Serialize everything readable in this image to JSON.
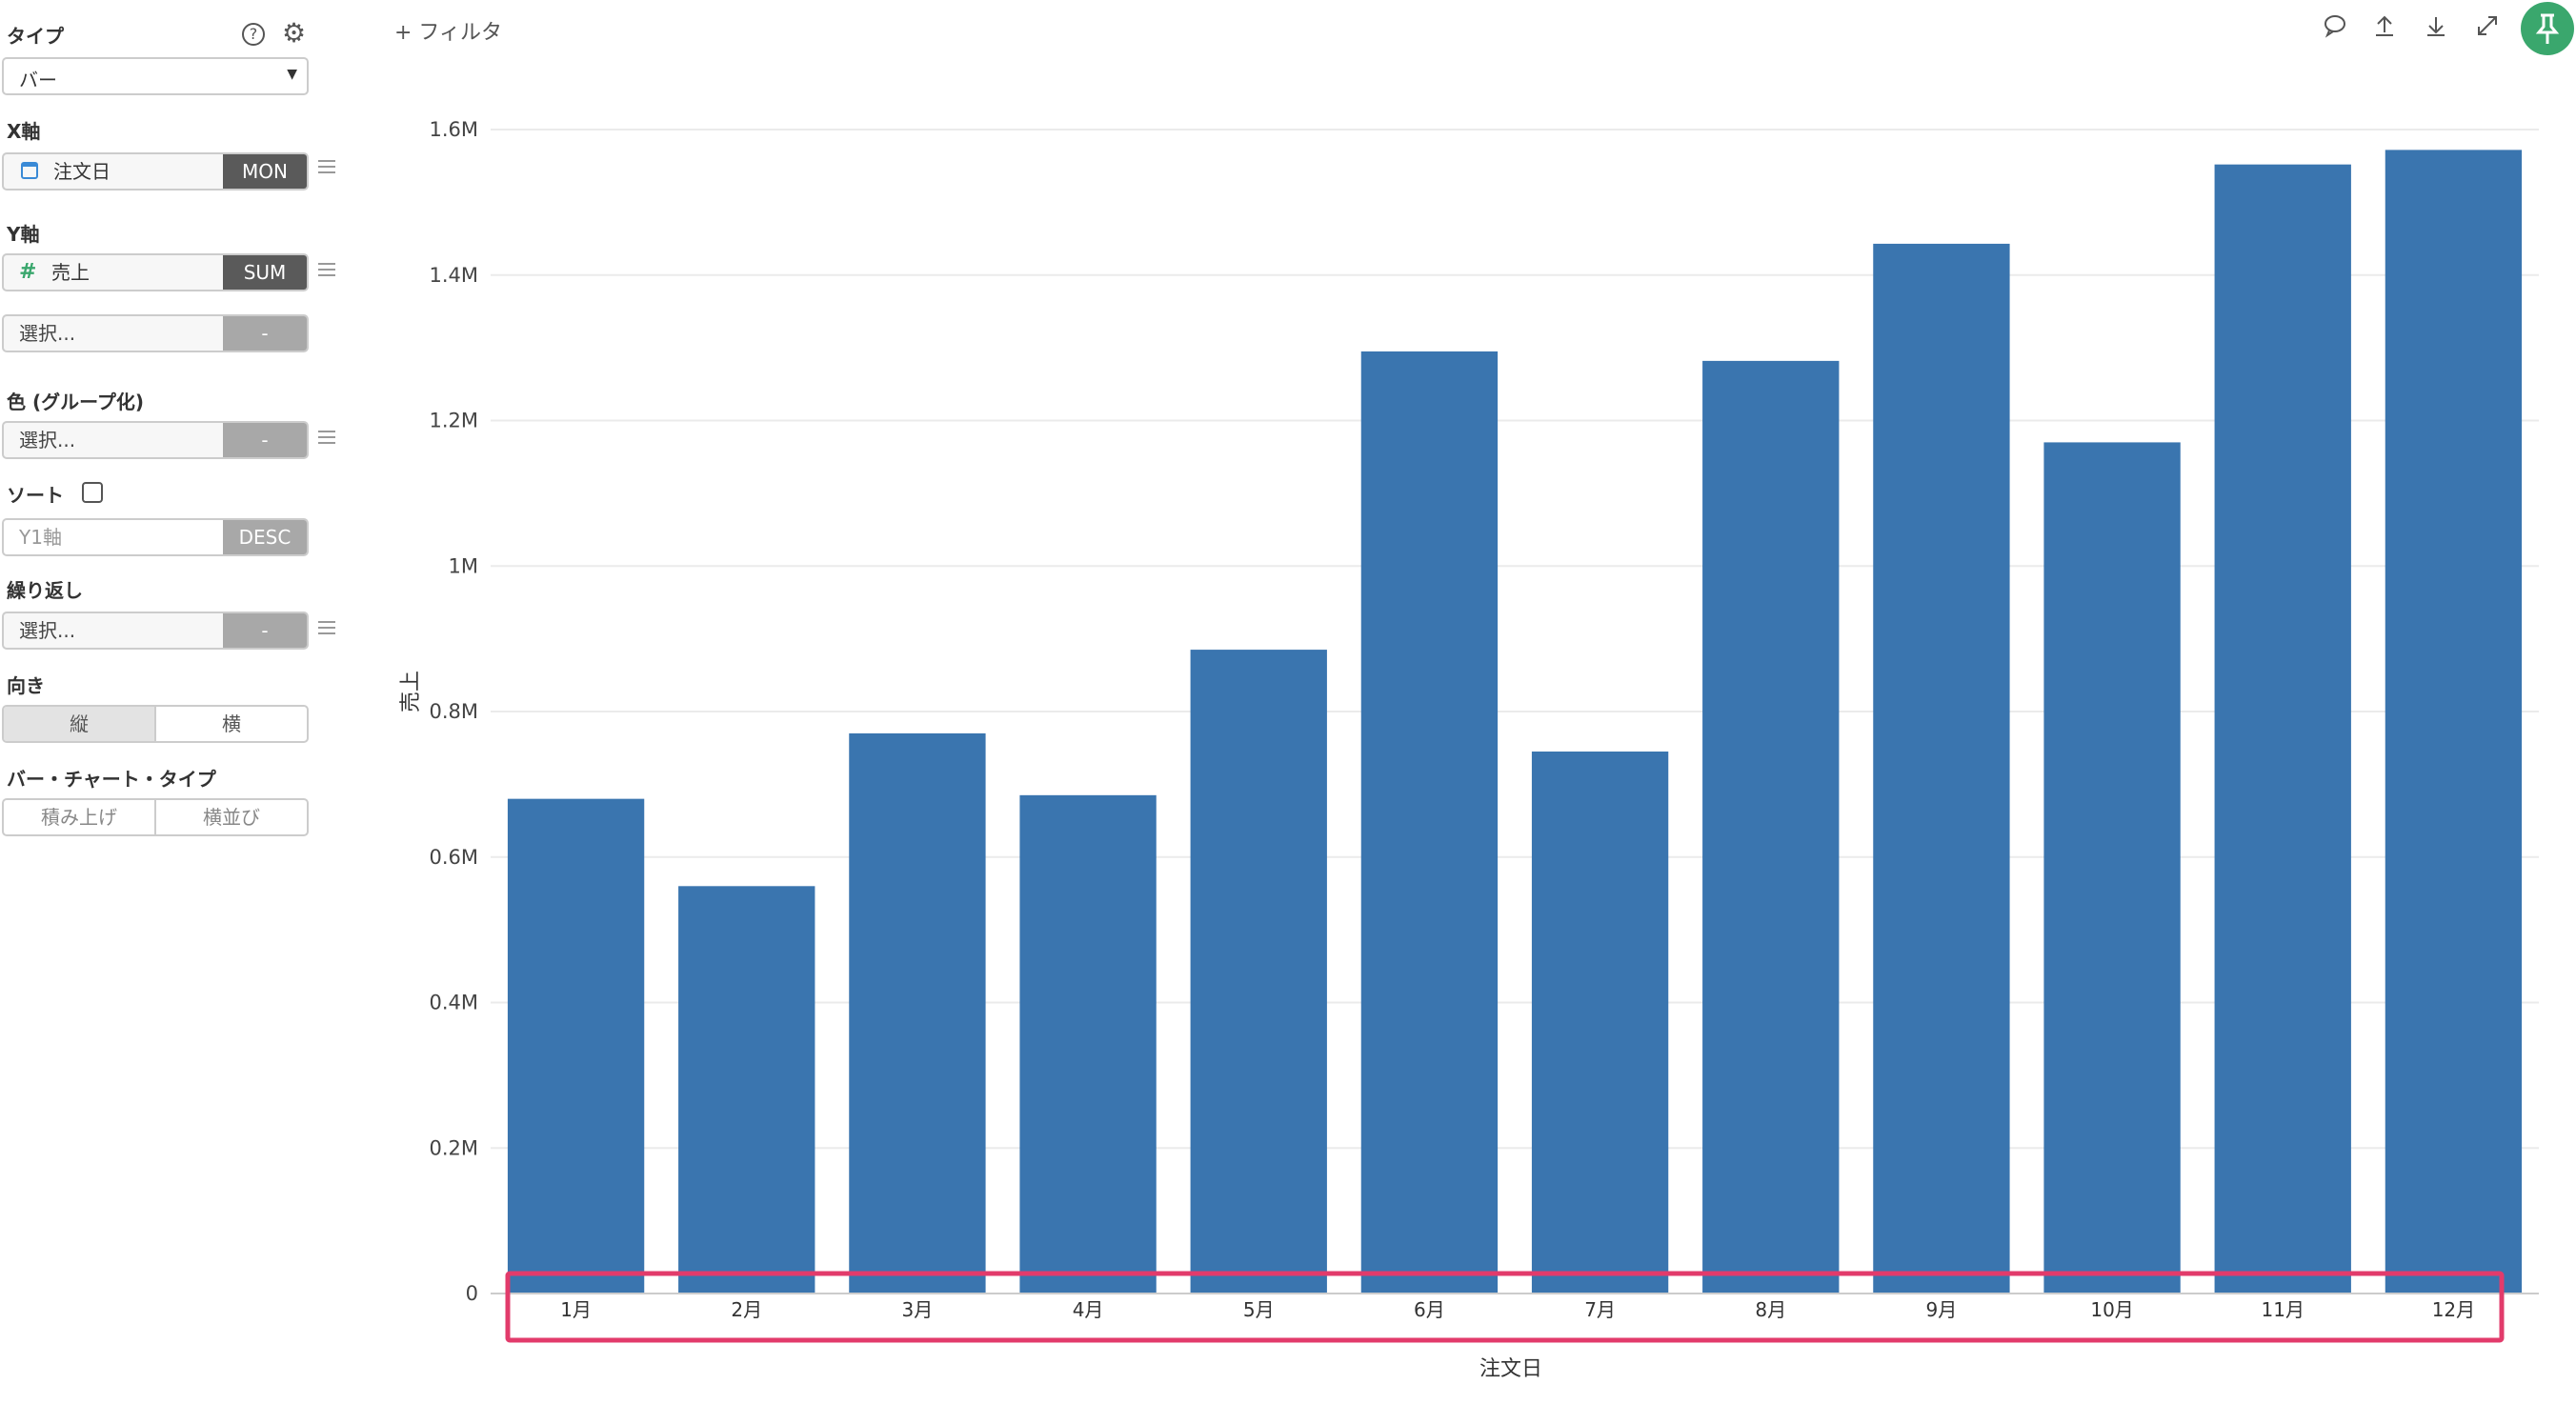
{
  "sidebar": {
    "type_label": "タイプ",
    "type_value": "バー",
    "x_axis_label": "X軸",
    "x_field": "注文日",
    "x_agg": "MON",
    "y_axis_label": "Y軸",
    "y_field": "売上",
    "y_agg": "SUM",
    "y_extra_placeholder": "選択...",
    "y_extra_agg": "-",
    "color_label": "色 (グループ化)",
    "color_placeholder": "選択...",
    "color_agg": "-",
    "sort_label": "ソート",
    "sort_field_placeholder": "Y1軸",
    "sort_order": "DESC",
    "repeat_label": "繰り返し",
    "repeat_placeholder": "選択...",
    "repeat_agg": "-",
    "orientation_label": "向き",
    "orientation_options": [
      "縦",
      "横"
    ],
    "bar_type_label": "バー・チャート・タイプ",
    "bar_type_options": [
      "積み上げ",
      "横並び"
    ]
  },
  "toolbar": {
    "filter_label": "+ フィルタ"
  },
  "colors": {
    "bar": "#3a75af",
    "highlight_box": "#e23b6b",
    "pin_button": "#3aa76d"
  },
  "chart_data": {
    "type": "bar",
    "categories": [
      "1月",
      "2月",
      "3月",
      "4月",
      "5月",
      "6月",
      "7月",
      "8月",
      "9月",
      "10月",
      "11月",
      "12月"
    ],
    "values": [
      680000,
      560000,
      770000,
      685000,
      885000,
      1295000,
      745000,
      1282000,
      1443000,
      1170000,
      1552000,
      1572000
    ],
    "xlabel": "注文日",
    "ylabel": "売上",
    "ylim": [
      0,
      1600000
    ],
    "yticks": [
      {
        "value": 0,
        "label": "0"
      },
      {
        "value": 200000,
        "label": "0.2M"
      },
      {
        "value": 400000,
        "label": "0.4M"
      },
      {
        "value": 600000,
        "label": "0.6M"
      },
      {
        "value": 800000,
        "label": "0.8M"
      },
      {
        "value": 1000000,
        "label": "1M"
      },
      {
        "value": 1200000,
        "label": "1.2M"
      },
      {
        "value": 1400000,
        "label": "1.4M"
      },
      {
        "value": 1600000,
        "label": "1.6M"
      }
    ],
    "grid": true,
    "legend": "none"
  }
}
